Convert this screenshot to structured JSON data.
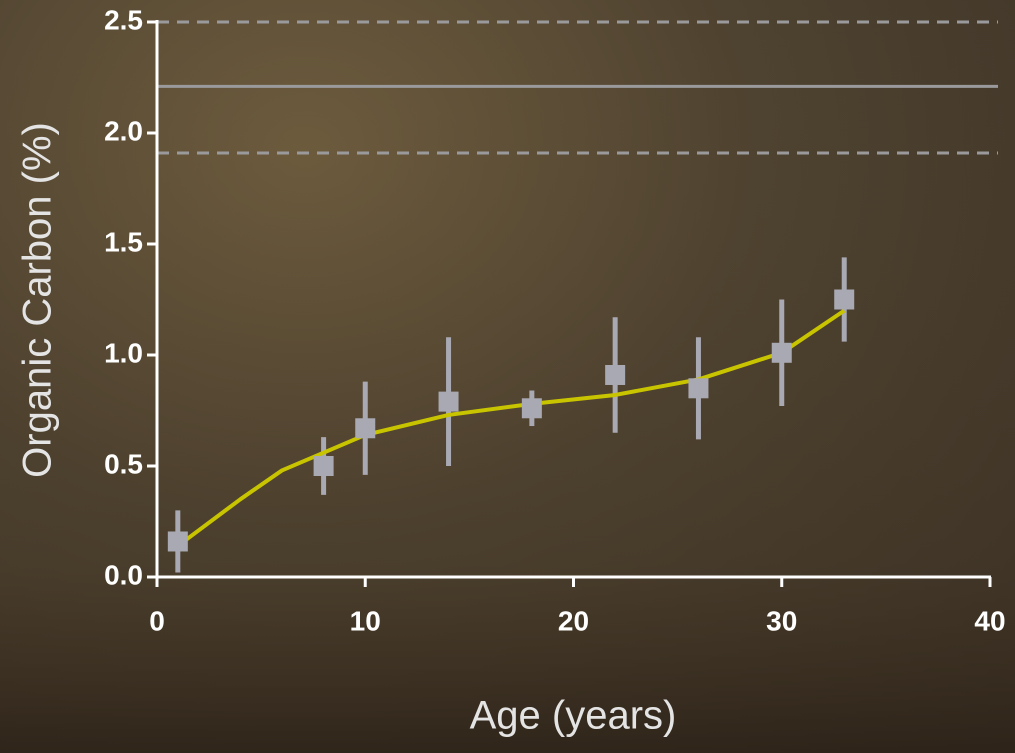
{
  "chart_data": {
    "type": "scatter",
    "xlabel": "Age (years)",
    "ylabel": "Organic Carbon (%)",
    "xlim": [
      0,
      40
    ],
    "xticks": [
      0,
      10,
      20,
      30,
      40
    ],
    "ylim": [
      0,
      2.5
    ],
    "yticks": [
      {
        "value": 0,
        "label": "0.0"
      },
      0.5,
      {
        "value": 1,
        "label": "1.0"
      },
      1.5,
      {
        "value": 2,
        "label": "2.0"
      },
      2.5
    ],
    "series": [
      {
        "color": "#a9a9b3",
        "x": [
          1,
          8,
          10,
          14,
          18,
          22,
          26,
          30,
          33
        ],
        "values": [
          0.16,
          0.5,
          0.67,
          0.79,
          0.76,
          0.91,
          0.85,
          1.01,
          1.25
        ],
        "errors": [
          0.14,
          0.13,
          0.21,
          0.29,
          0.08,
          0.26,
          0.23,
          0.24,
          0.19
        ]
      }
    ],
    "fit": {
      "color": "#c9c400",
      "x": [
        1,
        4,
        6,
        8,
        10,
        14,
        18,
        22,
        26,
        30,
        33
      ],
      "values": [
        0.14,
        0.35,
        0.48,
        0.56,
        0.64,
        0.73,
        0.78,
        0.82,
        0.89,
        1.01,
        1.2
      ]
    },
    "hlines": [
      {
        "value": 2.5,
        "style": "dashed"
      },
      {
        "value": 2.21,
        "style": "solid"
      },
      {
        "value": 1.91,
        "style": "dashed"
      }
    ],
    "hline_color": "#9a9a9c"
  }
}
